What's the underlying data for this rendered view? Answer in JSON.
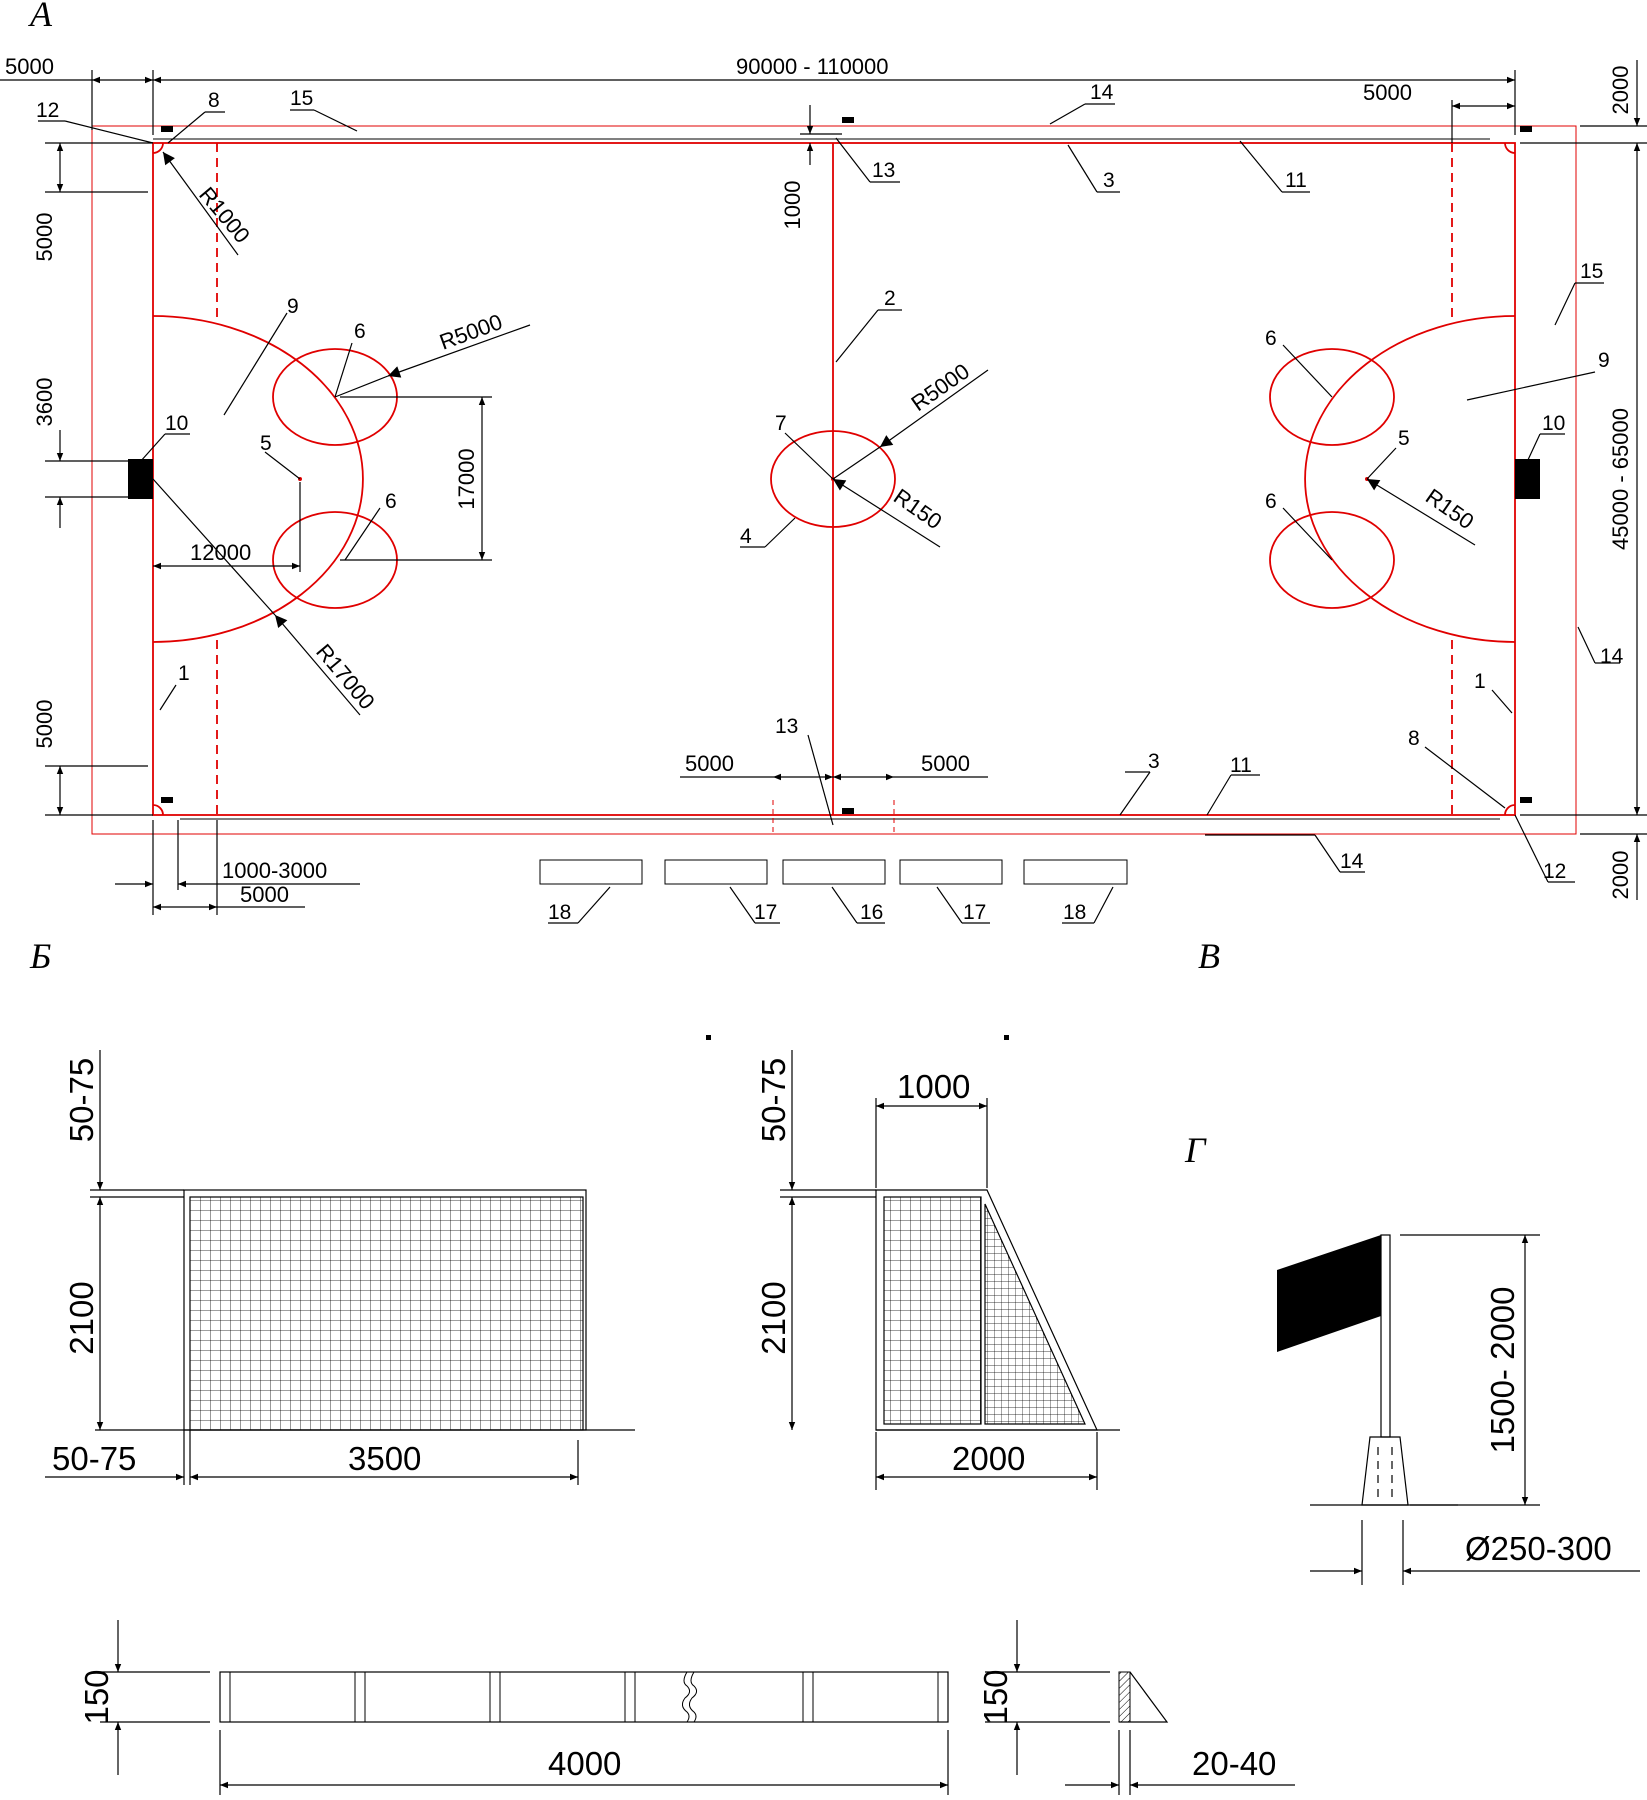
{
  "sections": {
    "a": "А",
    "b": "Б",
    "v": "В",
    "g": "Г"
  },
  "field_dims": {
    "overall_length": "90000 - 110000",
    "overall_width": "45000 - 65000",
    "margin_left": "5000",
    "margin_right": "5000",
    "margin_top": "2000",
    "margin_bottom": "2000",
    "corner_zone_top": "5000",
    "corner_zone_bottom": "5000",
    "goal_width": "3600",
    "spot_distance": "12000",
    "circle_spacing": "17000",
    "midline_mark": "1000",
    "sub_zone_left": "5000",
    "sub_zone_right": "5000",
    "flag_offset": "1000-3000",
    "dashed_offset": "5000"
  },
  "radii": {
    "corner": "R1000",
    "circle_left": "R5000",
    "center_circle": "R5000",
    "center_spot": "R150",
    "penalty_spot_right": "R150",
    "goal_area": "R17000"
  },
  "callouts": {
    "n1": "1",
    "n2": "2",
    "n3": "3",
    "n4": "4",
    "n5": "5",
    "n6": "6",
    "n7": "7",
    "n8": "8",
    "n9": "9",
    "n10": "10",
    "n11": "11",
    "n12": "12",
    "n13": "13",
    "n14": "14",
    "n15": "15",
    "n16": "16",
    "n17": "17",
    "n18": "18"
  },
  "goal_front": {
    "frame": "50-75",
    "height": "2100",
    "post": "50-75",
    "width": "3500"
  },
  "goal_side": {
    "frame": "50-75",
    "top_depth": "1000",
    "height": "2100",
    "base_depth": "2000"
  },
  "flag": {
    "height": "1500- 2000",
    "diameter": "Ø250-300"
  },
  "board": {
    "height": "150",
    "length": "4000",
    "side_height": "150",
    "thickness": "20-40"
  }
}
